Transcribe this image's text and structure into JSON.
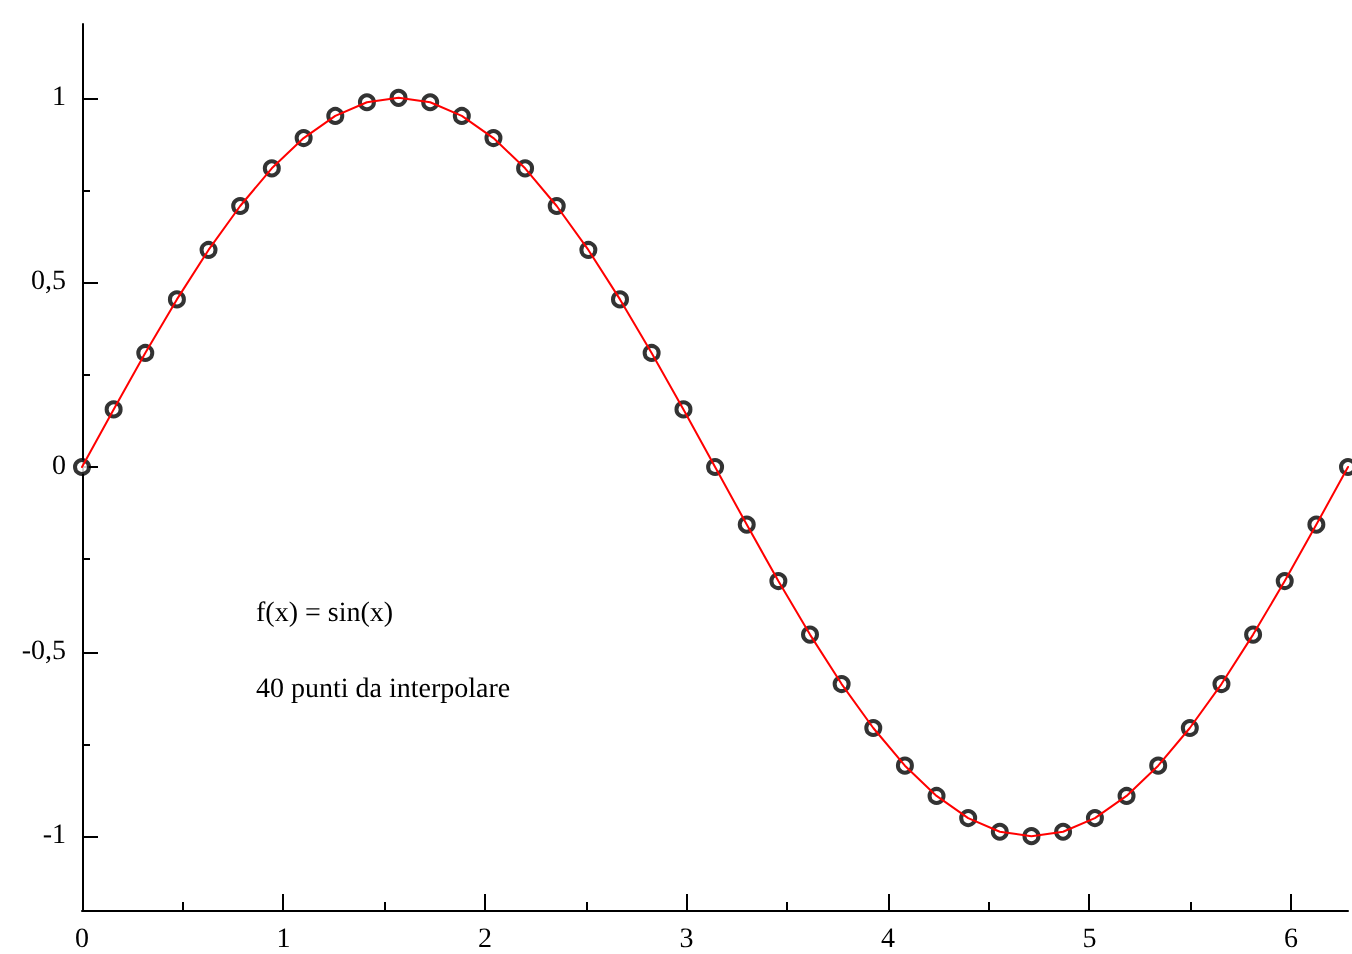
{
  "chart_data": {
    "type": "line",
    "xlim": [
      0,
      6.283
    ],
    "xticks": [
      0,
      1,
      2,
      3,
      4,
      5,
      6
    ],
    "ylim": [
      -1.2,
      1.2
    ],
    "yticks": [
      -1,
      {
        "value": -0.5,
        "label": "-0,5"
      },
      0,
      {
        "value": 0.5,
        "label": "0,5"
      },
      1
    ],
    "x": [
      0,
      0.157,
      0.314,
      0.471,
      0.628,
      0.785,
      0.942,
      1.1,
      1.257,
      1.414,
      1.571,
      1.728,
      1.885,
      2.042,
      2.199,
      2.356,
      2.513,
      2.67,
      2.827,
      2.985,
      3.142,
      3.299,
      3.456,
      3.613,
      3.77,
      3.927,
      4.084,
      4.241,
      4.398,
      4.555,
      4.712,
      4.869,
      5.027,
      5.184,
      5.341,
      5.498,
      5.655,
      5.812,
      5.969,
      6.126,
      6.283
    ],
    "series": [
      {
        "color": "#ff0000",
        "marker": "none",
        "line_style": "solid",
        "values": [
          0,
          0.156,
          0.309,
          0.454,
          0.588,
          0.707,
          0.809,
          0.891,
          0.951,
          0.988,
          1,
          0.988,
          0.951,
          0.891,
          0.809,
          0.707,
          0.588,
          0.454,
          0.309,
          0.156,
          0,
          -0.156,
          -0.309,
          -0.454,
          -0.588,
          -0.707,
          -0.809,
          -0.891,
          -0.951,
          -0.988,
          -1,
          -0.988,
          -0.951,
          -0.891,
          -0.809,
          -0.707,
          -0.588,
          -0.454,
          -0.309,
          -0.156,
          0
        ]
      },
      {
        "type": "scatter",
        "color": "#000000",
        "marker": "circle",
        "values": [
          0,
          0.156,
          0.309,
          0.454,
          0.588,
          0.707,
          0.809,
          0.891,
          0.951,
          0.988,
          1,
          0.988,
          0.951,
          0.891,
          0.809,
          0.707,
          0.588,
          0.454,
          0.309,
          0.156,
          0,
          -0.156,
          -0.309,
          -0.454,
          -0.588,
          -0.707,
          -0.809,
          -0.891,
          -0.951,
          -0.988,
          -1,
          -0.988,
          -0.951,
          -0.891,
          -0.809,
          -0.707,
          -0.588,
          -0.454,
          -0.309,
          -0.156,
          0
        ]
      }
    ],
    "annotations": [
      "f(x) = sin(x)",
      "40 punti da interpolare"
    ]
  }
}
